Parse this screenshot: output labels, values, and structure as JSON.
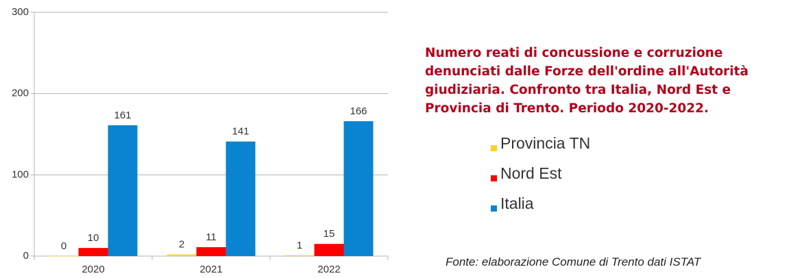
{
  "chart_data": {
    "type": "bar",
    "title": "Numero reati di concussione e corruzione denunciati dalle Forze dell'ordine all'Autorità giudiziaria. Confronto tra Italia, Nord Est e Provincia di Trento. Periodo 2020-2022.",
    "categories": [
      "2020",
      "2021",
      "2022"
    ],
    "series": [
      {
        "name": "Provincia TN",
        "color": "#ffd320",
        "values": [
          0,
          2,
          1
        ]
      },
      {
        "name": "Nord Est",
        "color": "#ff0000",
        "values": [
          10,
          11,
          15
        ]
      },
      {
        "name": "Italia",
        "color": "#0a84d0",
        "values": [
          161,
          141,
          166
        ]
      }
    ],
    "ylim": [
      0,
      300
    ],
    "yticks": [
      0,
      100,
      200,
      300
    ],
    "grid": true,
    "legend": "right",
    "source": "Fonte: elaborazione Comune di Trento dati ISTAT"
  }
}
